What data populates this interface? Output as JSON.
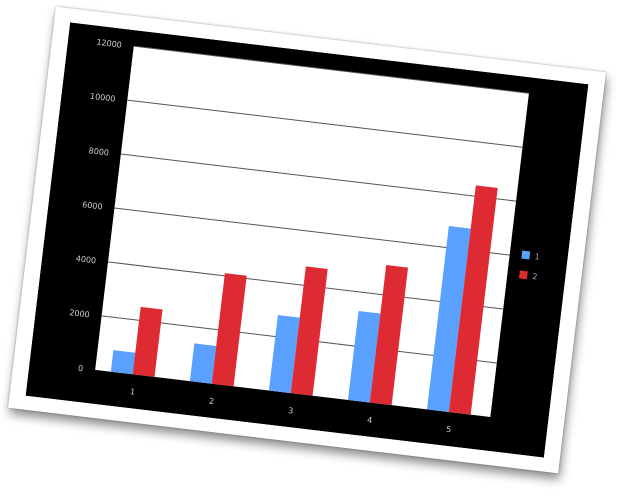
{
  "chart_data": {
    "type": "bar",
    "categories": [
      "1",
      "2",
      "3",
      "4",
      "5"
    ],
    "series": [
      {
        "name": "1",
        "values": [
          800,
          1400,
          2800,
          3300,
          6800
        ]
      },
      {
        "name": "2",
        "values": [
          2500,
          4100,
          4700,
          5100,
          8400
        ]
      }
    ],
    "ylim": [
      0,
      12000
    ],
    "yticks": [
      0,
      2000,
      4000,
      6000,
      8000,
      10000,
      12000
    ],
    "ytick_labels": [
      "0",
      "2000",
      "4000",
      "6000",
      "8000",
      "10000",
      "12000"
    ],
    "grid": true,
    "legend_position": "right",
    "colors": {
      "series_1": "#5aa0ff",
      "series_2": "#dd2a33",
      "background": "#000000",
      "plot_area": "#ffffff"
    }
  }
}
